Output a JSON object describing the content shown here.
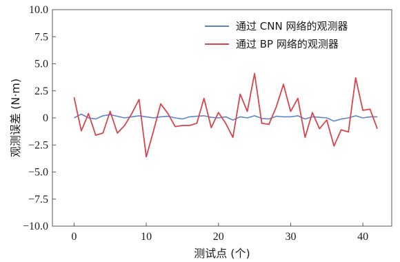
{
  "chart_data": {
    "type": "line",
    "title": "",
    "xlabel": "测试点 (个)",
    "ylabel": "观测误差 (N·m)",
    "xlim": [
      -3,
      44
    ],
    "ylim": [
      -10.0,
      10.0
    ],
    "xticks": [
      0,
      10,
      20,
      30,
      40
    ],
    "xtick_labels": [
      "0",
      "10",
      "20",
      "30",
      "40"
    ],
    "yticks": [
      -10.0,
      -7.5,
      -5.0,
      -2.5,
      0,
      2.5,
      5.0,
      7.5,
      10.0
    ],
    "ytick_labels": [
      "−10.0",
      "−7.5",
      "−5.0",
      "−2.5",
      "0",
      "2.5",
      "5.0",
      "7.5",
      "10.0"
    ],
    "grid": false,
    "legend_position": "top-right",
    "x": [
      0,
      1,
      2,
      3,
      4,
      5,
      6,
      7,
      8,
      9,
      10,
      11,
      12,
      13,
      14,
      15,
      16,
      17,
      18,
      19,
      20,
      21,
      22,
      23,
      24,
      25,
      26,
      27,
      28,
      29,
      30,
      31,
      32,
      33,
      34,
      35,
      36,
      37,
      38,
      39,
      40,
      41,
      42
    ],
    "series": [
      {
        "name": "通过 CNN 网络的观测器",
        "color": "#5b86c4",
        "values": [
          0.0,
          0.35,
          0.0,
          -0.1,
          0.2,
          0.3,
          0.15,
          0.0,
          0.1,
          0.2,
          0.1,
          0.0,
          0.1,
          0.15,
          0.0,
          -0.1,
          0.1,
          0.15,
          0.2,
          0.05,
          0.0,
          0.1,
          -0.2,
          0.1,
          0.0,
          0.2,
          -0.05,
          -0.1,
          0.15,
          0.1,
          0.1,
          0.2,
          -0.1,
          0.1,
          0.05,
          0.0,
          -0.3,
          -0.1,
          0.0,
          0.2,
          0.0,
          0.1,
          0.1
        ]
      },
      {
        "name": "通过 BP 网络的观测器",
        "color": "#d9434a",
        "values": [
          1.9,
          -1.2,
          0.4,
          -1.6,
          -1.4,
          0.6,
          -1.4,
          -0.7,
          0.4,
          1.7,
          -3.6,
          -1.2,
          1.3,
          0.4,
          -0.8,
          -0.7,
          -0.7,
          -0.5,
          1.8,
          -0.9,
          0.5,
          -0.5,
          -1.8,
          2.2,
          0.6,
          4.1,
          -0.5,
          -0.6,
          1.0,
          3.1,
          0.6,
          1.8,
          -1.8,
          0.5,
          -1.0,
          -0.2,
          -2.6,
          -1.1,
          -1.3,
          3.7,
          0.7,
          0.8,
          -1.0
        ]
      }
    ]
  }
}
